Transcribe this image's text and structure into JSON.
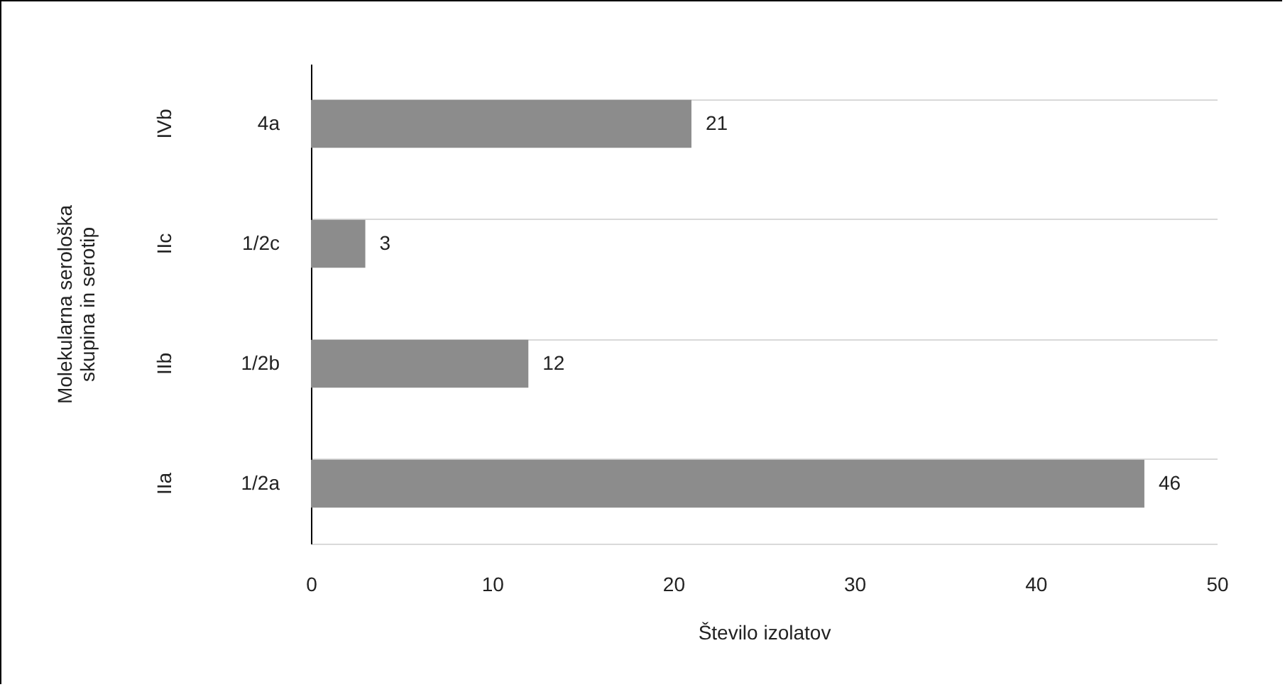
{
  "chart_data": {
    "type": "bar",
    "orientation": "horizontal",
    "xlabel": "Število izolatov",
    "ylabel": "Molekularna  serološka\nskupina in serotip",
    "categories": [
      "IVb",
      "IIc",
      "IIb",
      "IIa"
    ],
    "values": [
      21,
      3,
      12,
      46
    ],
    "color": "#8c8c8c",
    "data_labels": true,
    "xlim": [
      0,
      50
    ],
    "xticks": [
      0,
      10,
      20,
      30,
      40,
      50
    ],
    "grid": "y",
    "annotations": [
      "4a",
      "1/2c",
      "1/2b",
      "1/2a"
    ]
  }
}
